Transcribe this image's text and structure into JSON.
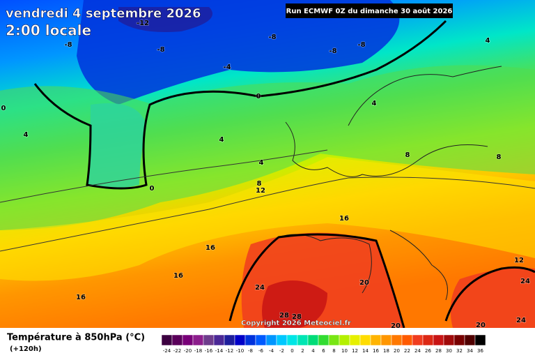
{
  "header": {
    "title": "vendredi 4 septembre 2026",
    "subtitle": "2:00 locale",
    "run": "Run ECMWF 0Z du dimanche 30 août 2026"
  },
  "map": {
    "copyright": "Copyright 2026 Meteociel.fr",
    "contour_labels": [
      -12,
      -8,
      -8,
      -8,
      -8,
      -8,
      -4,
      0,
      0,
      0,
      4,
      4,
      4,
      4,
      4,
      8,
      8,
      8,
      12,
      12,
      16,
      16,
      16,
      16,
      20,
      20,
      20,
      24,
      24,
      24,
      28,
      28
    ]
  },
  "legend": {
    "title": "Température à 850hPa (°C)",
    "subtitle": "(+120h)",
    "ticks": [
      -24,
      -22,
      -20,
      -18,
      -16,
      -14,
      -12,
      -10,
      -8,
      -6,
      -4,
      -2,
      0,
      2,
      4,
      6,
      8,
      10,
      12,
      14,
      16,
      18,
      20,
      22,
      24,
      26,
      28,
      30,
      32,
      34,
      36
    ],
    "colors": [
      "#3c0040",
      "#5a005a",
      "#780078",
      "#8c1e8c",
      "#6e3c8c",
      "#4b2896",
      "#1e1e9c",
      "#0000c8",
      "#0032dc",
      "#005aff",
      "#0096ff",
      "#00c8ff",
      "#00e6e6",
      "#00e6b4",
      "#00dc78",
      "#32dc32",
      "#78e614",
      "#b4f000",
      "#e6f000",
      "#ffdc00",
      "#ffb400",
      "#ff9600",
      "#ff7800",
      "#ff5a00",
      "#f03c1e",
      "#dc2814",
      "#c81414",
      "#a00a0a",
      "#780000",
      "#500000",
      "#000000"
    ]
  }
}
